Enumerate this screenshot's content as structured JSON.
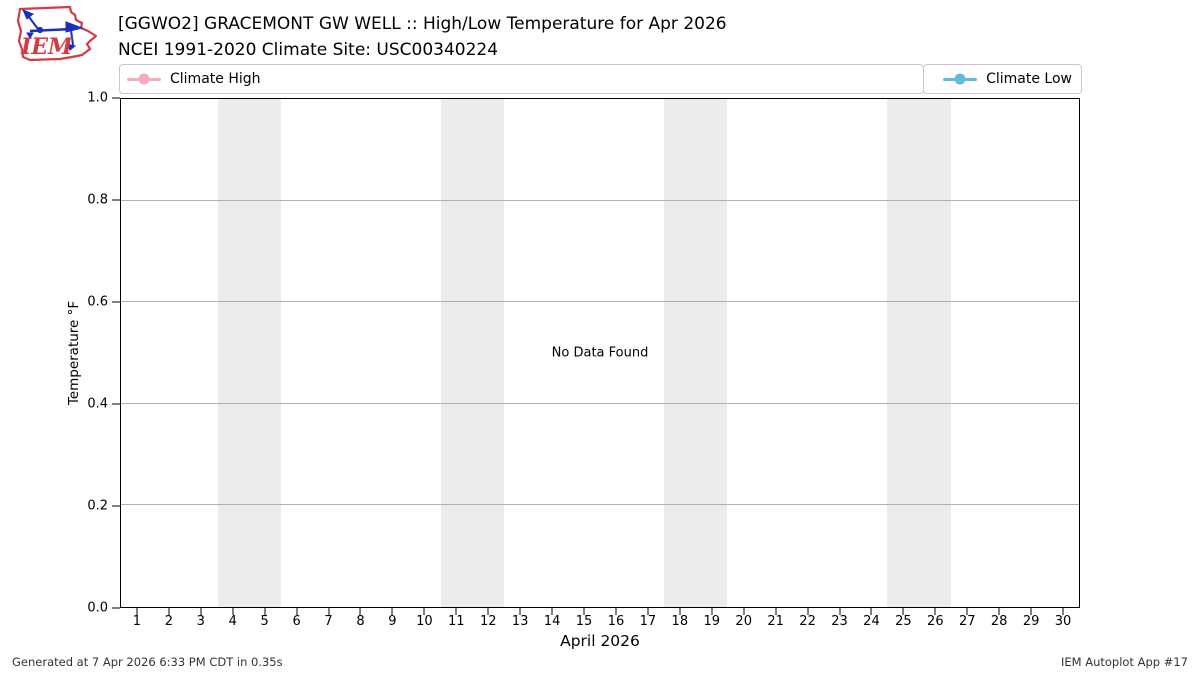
{
  "header": {
    "title_line1": "[GGWO2] GRACEMONT GW WELL :: High/Low Temperature for Apr 2026",
    "title_line2": "NCEI 1991-2020 Climate Site: USC00340224",
    "logo_text": "IEM"
  },
  "legend": {
    "entries": [
      {
        "label": "Climate High",
        "color": "#f8aabb"
      },
      {
        "label": "Climate Low",
        "color": "#66b9dc"
      }
    ]
  },
  "chart_data": {
    "type": "line",
    "title": "[GGWO2] GRACEMONT GW WELL :: High/Low Temperature for Apr 2026",
    "subtitle": "NCEI 1991-2020 Climate Site: USC00340224",
    "xlabel": "April 2026",
    "ylabel": "Temperature °F",
    "no_data_text": "No Data Found",
    "x": [
      1,
      2,
      3,
      4,
      5,
      6,
      7,
      8,
      9,
      10,
      11,
      12,
      13,
      14,
      15,
      16,
      17,
      18,
      19,
      20,
      21,
      22,
      23,
      24,
      25,
      26,
      27,
      28,
      29,
      30
    ],
    "series": [
      {
        "name": "Climate High",
        "color": "#f8aabb",
        "values": []
      },
      {
        "name": "Climate Low",
        "color": "#66b9dc",
        "values": []
      }
    ],
    "ylim": [
      0.0,
      1.0
    ],
    "xlim": [
      0.47,
      30.53
    ],
    "y_ticks": [
      "0.0",
      "0.2",
      "0.4",
      "0.6",
      "0.8",
      "1.0"
    ],
    "x_ticks": [
      1,
      2,
      3,
      4,
      5,
      6,
      7,
      8,
      9,
      10,
      11,
      12,
      13,
      14,
      15,
      16,
      17,
      18,
      19,
      20,
      21,
      22,
      23,
      24,
      25,
      26,
      27,
      28,
      29,
      30
    ],
    "weekend_bands": [
      [
        3.5,
        5.5
      ],
      [
        10.5,
        12.5
      ],
      [
        17.5,
        19.5
      ],
      [
        24.5,
        26.5
      ]
    ],
    "grid": "horizontal",
    "legend_position": "top, spread left/right",
    "band_color": "#ececec",
    "grid_color": "#b0b0b0"
  },
  "footer": {
    "left": "Generated at 7 Apr 2026 6:33 PM CDT in 0.35s",
    "right": "IEM Autoplot App #17"
  }
}
